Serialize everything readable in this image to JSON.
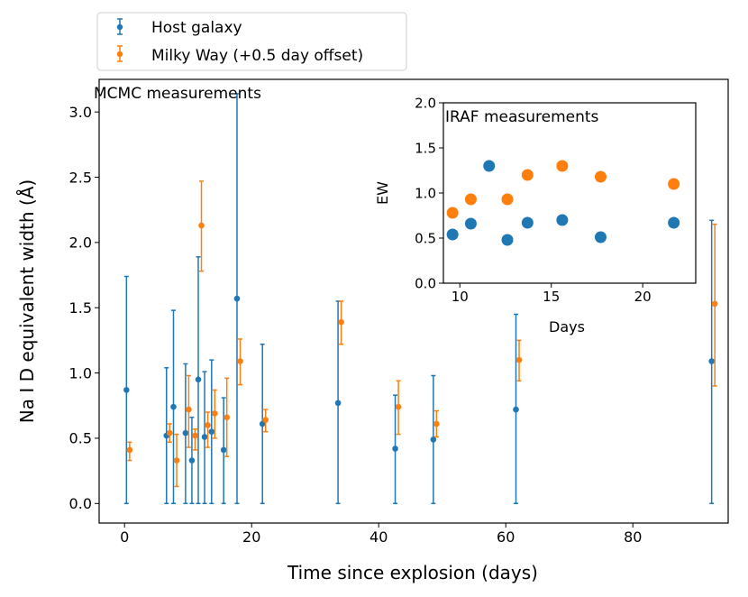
{
  "chart_data": [
    {
      "type": "scatter",
      "title": "",
      "annotation": "MCMC measurements",
      "xlabel": "Time since explosion (days)",
      "ylabel": "Na I D equivalent width (Å)",
      "xlim": [
        -4,
        95
      ],
      "ylim": [
        -0.15,
        3.25
      ],
      "xticks": [
        0,
        20,
        40,
        60,
        80
      ],
      "yticks": [
        0.0,
        0.5,
        1.0,
        1.5,
        2.0,
        2.5,
        3.0
      ],
      "xtick_labels": [
        "0",
        "20",
        "40",
        "60",
        "80"
      ],
      "ytick_labels": [
        "0.0",
        "0.5",
        "1.0",
        "1.5",
        "2.0",
        "2.5",
        "3.0"
      ],
      "legend_position": "above-left",
      "series": [
        {
          "name": "Host galaxy",
          "color": "#1f77b4",
          "points": [
            {
              "x": 0.3,
              "y": 0.87,
              "lo": 0.0,
              "hi": 1.74
            },
            {
              "x": 6.6,
              "y": 0.52,
              "lo": 0.0,
              "hi": 1.04
            },
            {
              "x": 7.7,
              "y": 0.74,
              "lo": 0.0,
              "hi": 1.48
            },
            {
              "x": 9.6,
              "y": 0.54,
              "lo": 0.0,
              "hi": 1.07
            },
            {
              "x": 10.6,
              "y": 0.33,
              "lo": 0.0,
              "hi": 0.66
            },
            {
              "x": 11.6,
              "y": 0.95,
              "lo": 0.0,
              "hi": 1.89
            },
            {
              "x": 12.6,
              "y": 0.51,
              "lo": 0.0,
              "hi": 1.01
            },
            {
              "x": 13.7,
              "y": 0.55,
              "lo": 0.0,
              "hi": 1.1
            },
            {
              "x": 15.6,
              "y": 0.41,
              "lo": 0.0,
              "hi": 0.81
            },
            {
              "x": 17.7,
              "y": 1.57,
              "lo": 0.0,
              "hi": 3.14
            },
            {
              "x": 21.7,
              "y": 0.61,
              "lo": 0.0,
              "hi": 1.22
            },
            {
              "x": 33.6,
              "y": 0.77,
              "lo": 0.0,
              "hi": 1.55
            },
            {
              "x": 42.6,
              "y": 0.42,
              "lo": 0.0,
              "hi": 0.83
            },
            {
              "x": 48.6,
              "y": 0.49,
              "lo": 0.0,
              "hi": 0.98
            },
            {
              "x": 61.6,
              "y": 0.72,
              "lo": 0.0,
              "hi": 1.45
            },
            {
              "x": 92.4,
              "y": 1.09,
              "lo": 0.0,
              "hi": 2.17
            }
          ]
        },
        {
          "name": "Milky Way (+0.5 day offset)",
          "color": "#ff7f0e",
          "points": [
            {
              "x": 0.8,
              "y": 0.41,
              "lo": 0.33,
              "hi": 0.47
            },
            {
              "x": 7.1,
              "y": 0.54,
              "lo": 0.47,
              "hi": 0.61
            },
            {
              "x": 8.2,
              "y": 0.33,
              "lo": 0.13,
              "hi": 0.53
            },
            {
              "x": 10.1,
              "y": 0.72,
              "lo": 0.43,
              "hi": 0.98
            },
            {
              "x": 11.1,
              "y": 0.52,
              "lo": 0.41,
              "hi": 0.57
            },
            {
              "x": 12.1,
              "y": 2.13,
              "lo": 1.78,
              "hi": 2.47
            },
            {
              "x": 13.1,
              "y": 0.6,
              "lo": 0.43,
              "hi": 0.7
            },
            {
              "x": 14.2,
              "y": 0.69,
              "lo": 0.5,
              "hi": 0.87
            },
            {
              "x": 16.1,
              "y": 0.66,
              "lo": 0.36,
              "hi": 0.96
            },
            {
              "x": 18.2,
              "y": 1.09,
              "lo": 0.91,
              "hi": 1.26
            },
            {
              "x": 22.2,
              "y": 0.64,
              "lo": 0.55,
              "hi": 0.72
            },
            {
              "x": 34.1,
              "y": 1.39,
              "lo": 1.22,
              "hi": 1.55
            },
            {
              "x": 43.1,
              "y": 0.74,
              "lo": 0.53,
              "hi": 0.94
            },
            {
              "x": 49.1,
              "y": 0.61,
              "lo": 0.51,
              "hi": 0.71
            },
            {
              "x": 62.1,
              "y": 1.1,
              "lo": 0.94,
              "hi": 1.25
            },
            {
              "x": 92.9,
              "y": 1.53,
              "lo": 0.9,
              "hi": 2.14
            }
          ]
        }
      ]
    },
    {
      "type": "scatter",
      "title": "",
      "annotation": "IRAF measurements",
      "xlabel": "Days",
      "ylabel": "EW",
      "xlim": [
        9.1,
        22.9
      ],
      "ylim": [
        0.0,
        2.0
      ],
      "xticks": [
        10,
        15,
        20
      ],
      "yticks": [
        0.0,
        0.5,
        1.0,
        1.5,
        2.0
      ],
      "xtick_labels": [
        "10",
        "15",
        "20"
      ],
      "ytick_labels": [
        "0.0",
        "0.5",
        "1.0",
        "1.5",
        "2.0"
      ],
      "series": [
        {
          "name": "Host galaxy",
          "color": "#1f77b4",
          "points": [
            {
              "x": 9.6,
              "y": 0.54
            },
            {
              "x": 10.6,
              "y": 0.66
            },
            {
              "x": 11.6,
              "y": 1.3
            },
            {
              "x": 12.6,
              "y": 0.48
            },
            {
              "x": 13.7,
              "y": 0.67
            },
            {
              "x": 15.6,
              "y": 0.7
            },
            {
              "x": 17.7,
              "y": 0.51
            },
            {
              "x": 21.7,
              "y": 0.67
            }
          ]
        },
        {
          "name": "Milky Way (+0.5 day offset)",
          "color": "#ff7f0e",
          "points": [
            {
              "x": 9.6,
              "y": 0.78
            },
            {
              "x": 10.6,
              "y": 0.93
            },
            {
              "x": 12.6,
              "y": 0.93
            },
            {
              "x": 13.7,
              "y": 1.2
            },
            {
              "x": 15.6,
              "y": 1.3
            },
            {
              "x": 17.7,
              "y": 1.18
            },
            {
              "x": 21.7,
              "y": 1.1
            }
          ]
        }
      ]
    }
  ]
}
